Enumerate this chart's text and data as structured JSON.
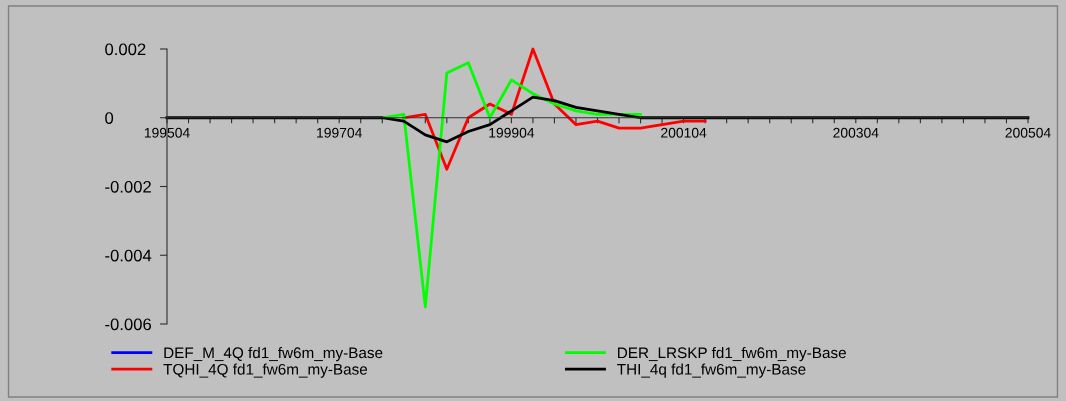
{
  "chart_data": {
    "type": "line",
    "categories": [
      "199504",
      null,
      null,
      null,
      null,
      null,
      null,
      null,
      "199704",
      null,
      null,
      null,
      null,
      null,
      null,
      null,
      "199904",
      null,
      null,
      null,
      null,
      null,
      null,
      null,
      "200104",
      null,
      null,
      null,
      null,
      null,
      null,
      null,
      "200304",
      null,
      null,
      null,
      null,
      null,
      null,
      null,
      "200504"
    ],
    "series": [
      {
        "name": "DEF_M_4Q fd1_fw6m_my-Base",
        "color": "#0000ff",
        "values": [
          null,
          null,
          null,
          null,
          null,
          null,
          null,
          null,
          null,
          null,
          null,
          null,
          null,
          null,
          null,
          null,
          null,
          null,
          null,
          null,
          null,
          null,
          null,
          null,
          null,
          null,
          null,
          null,
          null,
          null,
          null,
          null,
          null,
          null,
          null,
          null,
          null,
          null,
          null,
          null,
          null
        ]
      },
      {
        "name": "TQHI_4Q fd1_fw6m_my-Base",
        "color": "#ff0000",
        "values": [
          null,
          null,
          null,
          null,
          null,
          null,
          null,
          null,
          null,
          null,
          null,
          0,
          0.0001,
          -0.0015,
          0,
          0.0004,
          0.0001,
          0.002,
          0.0004,
          -0.0002,
          -0.0001,
          -0.0003,
          -0.0003,
          -0.0002,
          -0.0001,
          -0.0001,
          null,
          null,
          null,
          null,
          null,
          null,
          null,
          null,
          null,
          null,
          null,
          null,
          null,
          null,
          null
        ]
      },
      {
        "name": "DER_LRSKP fd1_fw6m_my-Base",
        "color": "#00ff00",
        "values": [
          null,
          null,
          null,
          null,
          null,
          null,
          null,
          null,
          null,
          null,
          0,
          0.0001,
          -0.0055,
          0.0013,
          0.0016,
          0,
          0.0011,
          0.0007,
          0.0004,
          0.0002,
          0.0001,
          0.0001,
          0.0001,
          null,
          null,
          null,
          null,
          null,
          null,
          null,
          null,
          null,
          null,
          null,
          null,
          null,
          null,
          null,
          null,
          null,
          null
        ]
      },
      {
        "name": "THI_4q fd1_fw6m_my-Base",
        "color": "#000000",
        "values": [
          0,
          0,
          0,
          0,
          0,
          0,
          0,
          0,
          0,
          0,
          0,
          -0.0001,
          -0.0005,
          -0.0007,
          -0.0004,
          -0.0002,
          0.0002,
          0.0006,
          0.0005,
          0.0003,
          0.0002,
          0.0001,
          0,
          0,
          0,
          0,
          0,
          0,
          0,
          0,
          0,
          0,
          0,
          0,
          0,
          0,
          0,
          0,
          0,
          0,
          0
        ]
      }
    ],
    "ylim": [
      -0.006,
      0.002
    ],
    "yticks": [
      -0.006,
      -0.004,
      -0.002,
      0,
      0.002
    ],
    "grid": false,
    "legend": "bottom left",
    "marker": "none",
    "line_style": "solid"
  }
}
